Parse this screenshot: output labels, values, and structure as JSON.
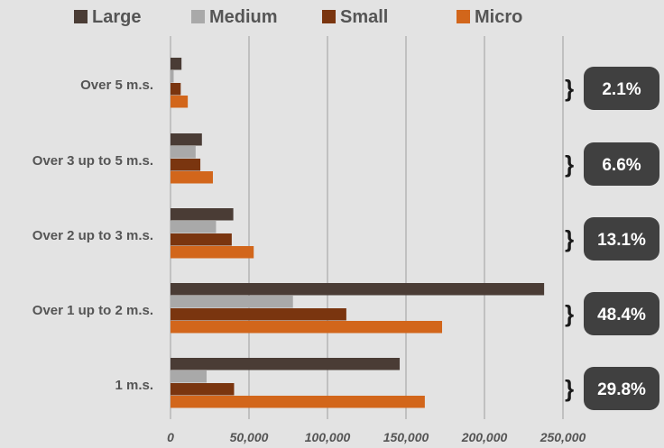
{
  "chart_data": {
    "type": "bar",
    "orientation": "horizontal",
    "categories": [
      "Over 5 m.s.",
      "Over 3 up to 5 m.s.",
      "Over 2 up to 3 m.s.",
      "Over 1 up to 2 m.s.",
      "1  m.s."
    ],
    "series": [
      {
        "name": "Large",
        "color": "#4a3c35",
        "values": [
          7000,
          20000,
          40000,
          238000,
          146000
        ]
      },
      {
        "name": "Medium",
        "color": "#a9a9a9",
        "values": [
          2000,
          16000,
          29000,
          78000,
          23000
        ]
      },
      {
        "name": "Small",
        "color": "#7a350f",
        "values": [
          6500,
          19000,
          39000,
          112000,
          40500
        ]
      },
      {
        "name": "Micro",
        "color": "#d2661b",
        "values": [
          11000,
          27000,
          53000,
          173000,
          162000
        ]
      }
    ],
    "x_ticks": [
      "0",
      "50,000",
      "100,000",
      "150,000",
      "200,000",
      "250,000"
    ],
    "xlim": [
      0,
      250000
    ],
    "grid": true,
    "legend_position": "top",
    "annotations": {
      "badge_color": "#404040",
      "brace_symbol": "}",
      "shares": [
        "2.1%",
        "6.6%",
        "13.1%",
        "48.4%",
        "29.8%"
      ]
    }
  }
}
